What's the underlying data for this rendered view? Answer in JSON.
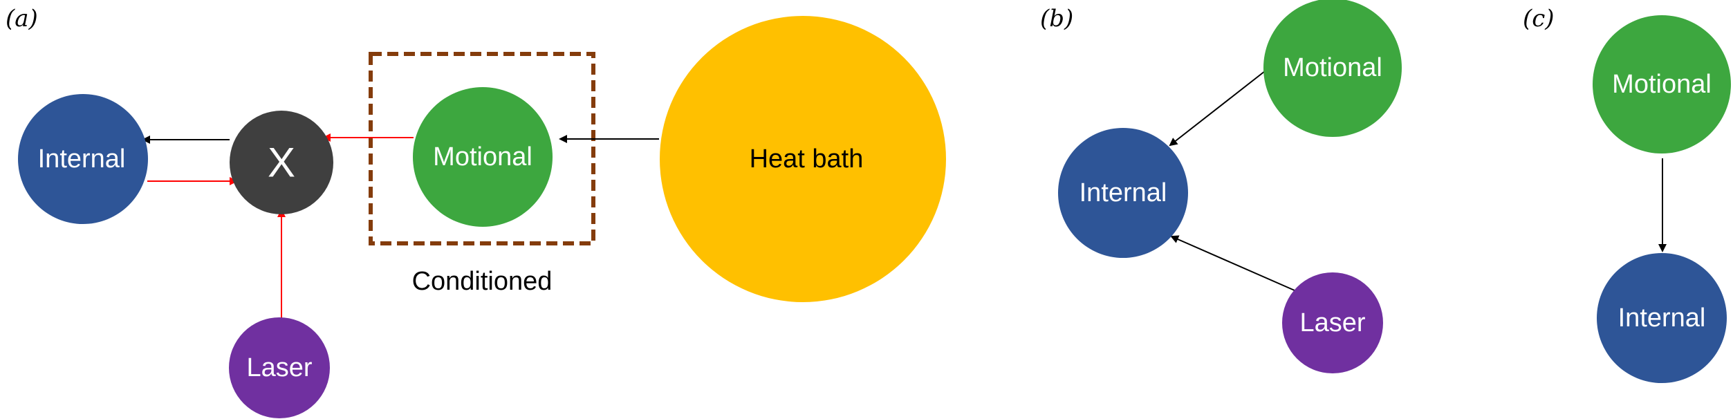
{
  "colors": {
    "internal": "#2E5597",
    "x": "#3F3F3F",
    "motional": "#3DA73F",
    "heat_bath": "#FFC000",
    "laser": "#7030A0",
    "red_arrow": "#FF0000",
    "black_arrow": "#000000",
    "box": "#843C0C"
  },
  "panel_a": {
    "label": "(a)",
    "internal": "Internal",
    "x": "X",
    "motional": "Motional",
    "heat_bath": "Heat bath",
    "laser": "Laser",
    "box_caption": "Conditioned"
  },
  "panel_b": {
    "label": "(b)",
    "motional": "Motional",
    "internal": "Internal",
    "laser": "Laser"
  },
  "panel_c": {
    "label": "(c)",
    "motional": "Motional",
    "internal": "Internal"
  }
}
